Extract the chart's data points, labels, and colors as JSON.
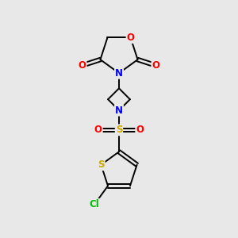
{
  "background_color": "#e8e8e8",
  "bond_color": "#000000",
  "atom_colors": {
    "O": "#ff0000",
    "N": "#0000ff",
    "S": "#ccaa00",
    "Cl": "#00bb00",
    "C": "#000000"
  },
  "figsize": [
    3.0,
    3.0
  ],
  "dpi": 100,
  "lw": 1.4,
  "fs": 8.5
}
